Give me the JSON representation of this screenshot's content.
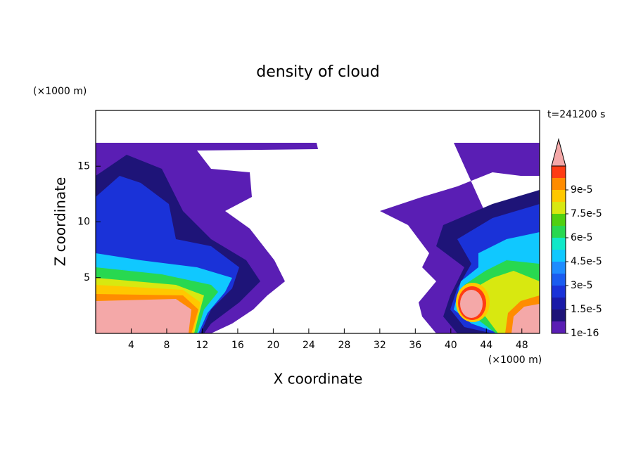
{
  "chart_data": {
    "type": "contour",
    "title": "density of cloud",
    "xlabel": "X coordinate",
    "ylabel": "Z coordinate",
    "x_unit": "(×1000 m)",
    "y_unit": "(×1000 m)",
    "time_label": "t=241200 s",
    "xlim": [
      0,
      50
    ],
    "ylim": [
      0,
      20
    ],
    "xticks": [
      4,
      8,
      12,
      16,
      20,
      24,
      28,
      32,
      36,
      40,
      44,
      48
    ],
    "yticks": [
      5,
      10,
      15
    ],
    "levels": [
      1e-16,
      7.5e-06,
      1.5e-05,
      2.25e-05,
      3e-05,
      3.75e-05,
      4.5e-05,
      5.25e-05,
      6e-05,
      6.75e-05,
      7.5e-05,
      8.25e-05,
      9e-05,
      9.75e-05,
      0.000105
    ],
    "colors": [
      "#5a1eb4",
      "#1e1478",
      "#1a1aa8",
      "#1a32d8",
      "#1a5cf0",
      "#1e8cff",
      "#10c8ff",
      "#10e8c8",
      "#28d850",
      "#50d010",
      "#d8e810",
      "#ffc800",
      "#ff8c00",
      "#ff3c14"
    ],
    "over_color": "#f4a8a8",
    "colorbar_ticks": [
      {
        "value": 1e-16,
        "label": "1e-16"
      },
      {
        "value": 1.5e-05,
        "label": "1.5e-5"
      },
      {
        "value": 3e-05,
        "label": "3e-5"
      },
      {
        "value": 4.5e-05,
        "label": "4.5e-5"
      },
      {
        "value": 6e-05,
        "label": "6e-5"
      },
      {
        "value": 7.5e-05,
        "label": "7.5e-5"
      },
      {
        "value": 9e-05,
        "label": "9e-5"
      }
    ]
  }
}
